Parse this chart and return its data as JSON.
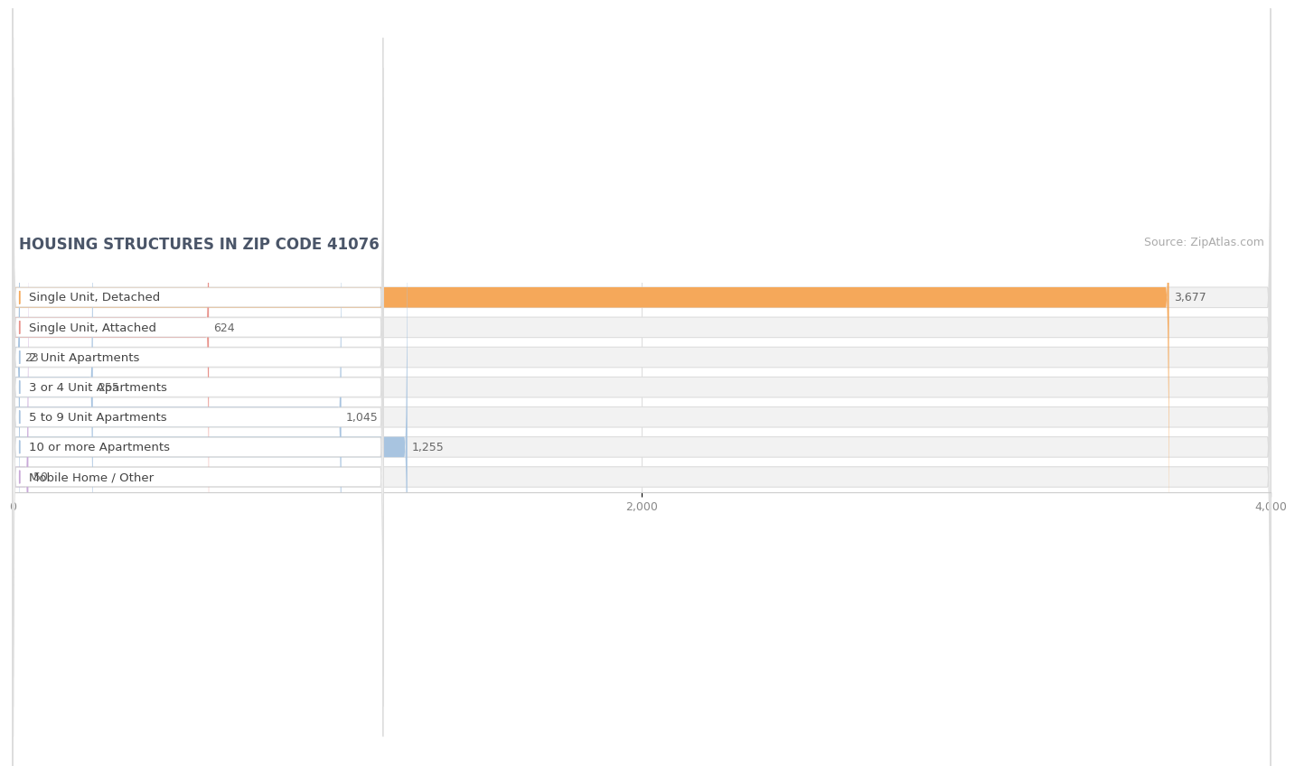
{
  "title": "HOUSING STRUCTURES IN ZIP CODE 41076",
  "source": "Source: ZipAtlas.com",
  "categories": [
    "Single Unit, Detached",
    "Single Unit, Attached",
    "2 Unit Apartments",
    "3 or 4 Unit Apartments",
    "5 to 9 Unit Apartments",
    "10 or more Apartments",
    "Mobile Home / Other"
  ],
  "values": [
    3677,
    624,
    23,
    255,
    1045,
    1255,
    50
  ],
  "bar_colors": [
    "#F5A85A",
    "#E8918A",
    "#A8C4E0",
    "#A8C4E0",
    "#A8C4E0",
    "#A8C4E0",
    "#C8A8D8"
  ],
  "row_bg_color": "#F2F2F2",
  "label_bg_color": "#FFFFFF",
  "xlim": [
    0,
    4000
  ],
  "xticks": [
    0,
    2000,
    4000
  ],
  "title_fontsize": 12,
  "label_fontsize": 9.5,
  "value_fontsize": 9,
  "source_fontsize": 9,
  "background_color": "#FFFFFF",
  "title_color": "#4A5568",
  "label_color": "#444444",
  "value_color": "#666666",
  "source_color": "#AAAAAA"
}
